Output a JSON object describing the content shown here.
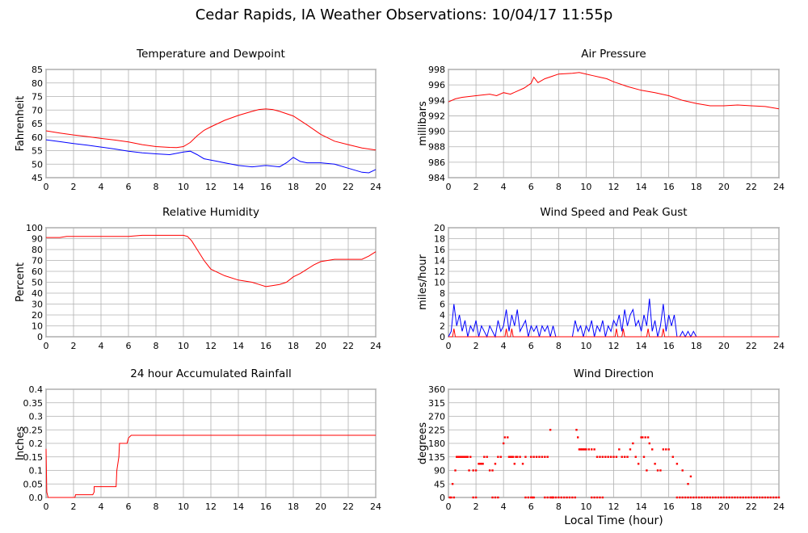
{
  "page": {
    "title": "Cedar Rapids, IA Weather Observations: 10/04/17 11:55p"
  },
  "x_axis_title": "Local Time (hour)",
  "chart_data": [
    {
      "id": "temp",
      "type": "line",
      "title": "Temperature and Dewpoint",
      "ylabel": "Fahrenheit",
      "xlim": [
        0,
        24
      ],
      "ylim": [
        45,
        85
      ],
      "yticks": [
        "45",
        "50",
        "55",
        "60",
        "65",
        "70",
        "75",
        "80",
        "85"
      ],
      "xticks": [
        "0",
        "2",
        "4",
        "6",
        "8",
        "10",
        "12",
        "14",
        "16",
        "18",
        "20",
        "22",
        "24"
      ],
      "grid": true,
      "series": [
        {
          "color": "#ff0000",
          "x": [
            0,
            1,
            2,
            3,
            4,
            5,
            6,
            7,
            8,
            9,
            9.5,
            10,
            10.5,
            11,
            11.5,
            12,
            13,
            14,
            15,
            15.5,
            16,
            16.5,
            17,
            18,
            19,
            20,
            21,
            22,
            23,
            24
          ],
          "values": [
            62.3,
            61.5,
            60.8,
            60.2,
            59.5,
            58.9,
            58.2,
            57.2,
            56.5,
            56.2,
            56.1,
            56.5,
            58.0,
            60.5,
            62.5,
            63.8,
            66.2,
            68.0,
            69.5,
            70.2,
            70.4,
            70.2,
            69.5,
            67.8,
            64.5,
            61.0,
            58.5,
            57.2,
            56.0,
            55.2
          ]
        },
        {
          "color": "#0000ff",
          "x": [
            0,
            1,
            2,
            3,
            4,
            5,
            6,
            7,
            8,
            9,
            10,
            10.5,
            11,
            11.5,
            12,
            12.5,
            13,
            14,
            15,
            16,
            17,
            17.5,
            18,
            18.5,
            19,
            20,
            21,
            22,
            23,
            23.5,
            24
          ],
          "values": [
            59.0,
            58.3,
            57.6,
            57.0,
            56.3,
            55.6,
            54.8,
            54.2,
            53.8,
            53.5,
            54.5,
            54.8,
            53.5,
            52.0,
            51.5,
            51.0,
            50.5,
            49.5,
            49.0,
            49.5,
            49.0,
            50.5,
            52.5,
            51.0,
            50.5,
            50.5,
            50.0,
            48.5,
            47.0,
            46.8,
            48.0
          ]
        }
      ]
    },
    {
      "id": "pres",
      "type": "line",
      "title": "Air Pressure",
      "ylabel": "millibars",
      "xlim": [
        0,
        24
      ],
      "ylim": [
        984,
        998
      ],
      "yticks": [
        "984",
        "986",
        "988",
        "990",
        "992",
        "994",
        "996",
        "998"
      ],
      "xticks": [
        "0",
        "2",
        "4",
        "6",
        "8",
        "10",
        "12",
        "14",
        "16",
        "18",
        "20",
        "22",
        "24"
      ],
      "grid": true,
      "series": [
        {
          "color": "#ff0000",
          "x": [
            0,
            0.5,
            1,
            2,
            3,
            3.5,
            4,
            4.5,
            5,
            5.5,
            6,
            6.2,
            6.5,
            7,
            7.5,
            8,
            9,
            9.5,
            10,
            10.5,
            11,
            11.5,
            12,
            13,
            14,
            15,
            16,
            16.5,
            17,
            18,
            19,
            20,
            21,
            22,
            23,
            24
          ],
          "values": [
            993.8,
            994.2,
            994.4,
            994.6,
            994.8,
            994.6,
            995.0,
            994.8,
            995.2,
            995.6,
            996.2,
            997.0,
            996.3,
            996.8,
            997.1,
            997.4,
            997.5,
            997.6,
            997.4,
            997.2,
            997.0,
            996.8,
            996.4,
            995.8,
            995.3,
            995.0,
            994.6,
            994.3,
            994.0,
            993.6,
            993.3,
            993.3,
            993.4,
            993.3,
            993.2,
            992.9
          ]
        }
      ]
    },
    {
      "id": "rh",
      "type": "line",
      "title": "Relative Humidity",
      "ylabel": "Percent",
      "xlim": [
        0,
        24
      ],
      "ylim": [
        0,
        100
      ],
      "yticks": [
        "0",
        "10",
        "20",
        "30",
        "40",
        "50",
        "60",
        "70",
        "80",
        "90",
        "100"
      ],
      "xticks": [
        "0",
        "2",
        "4",
        "6",
        "8",
        "10",
        "12",
        "14",
        "16",
        "18",
        "20",
        "22",
        "24"
      ],
      "grid": true,
      "series": [
        {
          "color": "#ff0000",
          "x": [
            0,
            1,
            1.5,
            2,
            3,
            4,
            5,
            6,
            7,
            8,
            9,
            10,
            10.3,
            10.6,
            11,
            11.5,
            12,
            13,
            14,
            15,
            15.5,
            16,
            16.5,
            17,
            17.5,
            18,
            18.5,
            19,
            19.5,
            20,
            21,
            22,
            23,
            23.5,
            24
          ],
          "values": [
            91,
            91,
            92,
            92,
            92,
            92,
            92,
            92,
            93,
            93,
            93,
            93,
            92,
            88,
            80,
            70,
            62,
            56,
            52,
            50,
            48,
            46,
            47,
            48,
            50,
            55,
            58,
            62,
            66,
            69,
            71,
            71,
            71,
            74,
            78
          ]
        }
      ]
    },
    {
      "id": "wind",
      "type": "line",
      "title": "Wind Speed and Peak Gust",
      "ylabel": "miles/hour",
      "xlim": [
        0,
        24
      ],
      "ylim": [
        0,
        20
      ],
      "yticks": [
        "0",
        "2",
        "4",
        "6",
        "8",
        "10",
        "12",
        "14",
        "16",
        "18",
        "20"
      ],
      "xticks": [
        "0",
        "2",
        "4",
        "6",
        "8",
        "10",
        "12",
        "14",
        "16",
        "18",
        "20",
        "22",
        "24"
      ],
      "grid": true,
      "series": [
        {
          "color": "#0000ff",
          "x": [
            0,
            0.2,
            0.4,
            0.6,
            0.8,
            1,
            1.2,
            1.4,
            1.6,
            1.8,
            2,
            2.2,
            2.4,
            2.6,
            2.8,
            3,
            3.2,
            3.4,
            3.6,
            3.8,
            4,
            4.2,
            4.4,
            4.6,
            4.8,
            5,
            5.2,
            5.4,
            5.6,
            5.8,
            6,
            6.2,
            6.4,
            6.6,
            6.8,
            7,
            7.2,
            7.4,
            7.6,
            7.8,
            8,
            9,
            9.2,
            9.4,
            9.6,
            9.8,
            10,
            10.2,
            10.4,
            10.6,
            10.8,
            11,
            11.2,
            11.4,
            11.6,
            11.8,
            12,
            12.2,
            12.4,
            12.6,
            12.8,
            13,
            13.2,
            13.4,
            13.6,
            13.8,
            14,
            14.2,
            14.4,
            14.6,
            14.8,
            15,
            15.2,
            15.4,
            15.6,
            15.8,
            16,
            16.2,
            16.4,
            16.6,
            16.8,
            17,
            17.2,
            17.4,
            17.6,
            17.8,
            18,
            24
          ],
          "values": [
            0,
            1,
            6,
            2,
            4,
            1,
            3,
            0,
            2,
            1,
            3,
            0,
            2,
            1,
            0,
            2,
            1,
            0,
            3,
            1,
            2,
            5,
            1,
            4,
            2,
            5,
            1,
            2,
            3,
            0,
            2,
            1,
            2,
            0,
            2,
            1,
            2,
            0,
            2,
            0,
            0,
            0,
            3,
            1,
            2,
            0,
            2,
            1,
            3,
            0,
            2,
            1,
            3,
            0,
            2,
            1,
            3,
            2,
            4,
            1,
            5,
            2,
            4,
            5,
            2,
            3,
            1,
            4,
            2,
            7,
            1,
            3,
            0,
            2,
            6,
            1,
            4,
            2,
            4,
            0,
            0,
            1,
            0,
            1,
            0,
            1,
            0,
            0
          ]
        },
        {
          "color": "#ff0000",
          "x": [
            0,
            0.3,
            0.4,
            0.5,
            4.1,
            4.2,
            4.3,
            4.5,
            4.6,
            4.7,
            12.1,
            12.2,
            12.3,
            12.6,
            12.7,
            12.8,
            14.4,
            14.5,
            14.6,
            15.5,
            15.6,
            15.7,
            24
          ],
          "values": [
            0,
            0,
            1.5,
            0,
            0,
            1.5,
            0,
            0,
            1.5,
            0,
            0,
            1.5,
            0,
            0,
            1.5,
            0,
            0,
            1.5,
            0,
            0,
            1.5,
            0,
            0
          ]
        }
      ]
    },
    {
      "id": "rain",
      "type": "line",
      "title": "24 hour Accumulated Rainfall",
      "ylabel": "Inches",
      "xlim": [
        0,
        24
      ],
      "ylim": [
        0,
        0.4
      ],
      "yticks": [
        "0.0",
        "0.05",
        "0.1",
        "0.15",
        "0.2",
        "0.25",
        "0.3",
        "0.35",
        "0.4"
      ],
      "xticks": [
        "0",
        "2",
        "4",
        "6",
        "8",
        "10",
        "12",
        "14",
        "16",
        "18",
        "20",
        "22",
        "24"
      ],
      "grid": true,
      "series": [
        {
          "color": "#ff0000",
          "x": [
            0,
            0.05,
            0.15,
            2.1,
            2.15,
            3.4,
            3.5,
            3.5,
            5.1,
            5.15,
            5.3,
            5.35,
            5.9,
            6.0,
            6.2,
            24
          ],
          "values": [
            0.18,
            0.02,
            0,
            0,
            0.01,
            0.01,
            0.02,
            0.04,
            0.04,
            0.1,
            0.15,
            0.2,
            0.2,
            0.22,
            0.23,
            0.23
          ]
        }
      ]
    },
    {
      "id": "wdir",
      "type": "scatter",
      "title": "Wind Direction",
      "ylabel": "degrees",
      "xlabel": "Local Time (hour)",
      "xlim": [
        0,
        24
      ],
      "ylim": [
        0,
        360
      ],
      "yticks": [
        "0",
        "45",
        "90",
        "135",
        "180",
        "225",
        "270",
        "315",
        "360"
      ],
      "xticks": [
        "0",
        "2",
        "4",
        "6",
        "8",
        "10",
        "12",
        "14",
        "16",
        "18",
        "20",
        "22",
        "24"
      ],
      "grid": true,
      "series": [
        {
          "color": "#ff0000",
          "x": [
            0.1,
            0.3,
            0.5,
            0.6,
            0.7,
            0.8,
            0.9,
            1.0,
            1.1,
            1.2,
            1.3,
            1.4,
            1.5,
            1.6,
            1.8,
            2.0,
            2.2,
            2.3,
            2.4,
            2.5,
            2.6,
            2.8,
            3.0,
            3.2,
            3.4,
            3.6,
            3.8,
            4.0,
            4.1,
            4.3,
            4.4,
            4.5,
            4.6,
            4.7,
            4.8,
            4.9,
            5.0,
            5.2,
            5.4,
            5.6,
            6.0,
            6.2,
            6.4,
            6.6,
            6.8,
            7.0,
            7.2,
            7.4,
            7.6,
            9.3,
            9.4,
            9.5,
            9.6,
            9.7,
            9.8,
            9.9,
            10.0,
            10.2,
            10.4,
            10.6,
            10.8,
            11.0,
            11.2,
            11.4,
            11.6,
            11.8,
            12.0,
            12.2,
            12.4,
            12.6,
            12.8,
            13.0,
            13.2,
            13.4,
            13.6,
            13.8,
            14.0,
            14.1,
            14.2,
            14.3,
            14.4,
            14.5,
            14.6,
            14.8,
            15.0,
            15.2,
            15.4,
            15.6,
            15.8,
            16.0,
            16.3,
            16.6,
            17.0,
            17.4,
            17.6
          ],
          "values": [
            0,
            45,
            90,
            135,
            135,
            135,
            135,
            135,
            135,
            135,
            135,
            135,
            90,
            135,
            90,
            90,
            112,
            112,
            112,
            112,
            135,
            135,
            90,
            90,
            112,
            135,
            135,
            180,
            200,
            200,
            135,
            135,
            135,
            135,
            112,
            135,
            135,
            135,
            112,
            135,
            135,
            135,
            135,
            135,
            135,
            135,
            135,
            225,
            0,
            225,
            200,
            160,
            160,
            160,
            160,
            160,
            160,
            160,
            160,
            160,
            135,
            135,
            135,
            135,
            135,
            135,
            135,
            135,
            160,
            135,
            135,
            135,
            160,
            180,
            135,
            112,
            200,
            200,
            135,
            200,
            90,
            200,
            180,
            160,
            112,
            90,
            90,
            160,
            160,
            160,
            135,
            112,
            90,
            45,
            70
          ]
        },
        {
          "color": "#ff0000",
          "x": [
            0.2,
            0.4,
            1.8,
            2.0,
            3.2,
            3.4,
            3.6,
            5.6,
            5.8,
            6.0,
            6.1,
            6.2,
            7.0,
            7.2,
            7.4,
            7.5,
            7.6,
            7.8,
            8.0,
            8.2,
            8.4,
            8.6,
            8.8,
            9.0,
            9.2,
            10.4,
            10.6,
            10.8,
            11.0,
            11.2,
            16.6,
            16.8,
            17.0,
            17.2,
            17.4,
            17.6,
            17.8,
            18.0,
            18.2,
            18.4,
            18.6,
            18.8,
            19.0,
            19.2,
            19.4,
            19.6,
            19.8,
            20.0,
            20.2,
            20.4,
            20.6,
            20.8,
            21.0,
            21.2,
            21.4,
            21.6,
            21.8,
            22.0,
            22.2,
            22.4,
            22.6,
            22.8,
            23.0,
            23.2,
            23.4,
            23.6,
            23.8,
            24.0
          ],
          "values": [
            0,
            0,
            0,
            0,
            0,
            0,
            0,
            0,
            0,
            0,
            0,
            0,
            0,
            0,
            0,
            0,
            0,
            0,
            0,
            0,
            0,
            0,
            0,
            0,
            0,
            0,
            0,
            0,
            0,
            0,
            0,
            0,
            0,
            0,
            0,
            0,
            0,
            0,
            0,
            0,
            0,
            0,
            0,
            0,
            0,
            0,
            0,
            0,
            0,
            0,
            0,
            0,
            0,
            0,
            0,
            0,
            0,
            0,
            0,
            0,
            0,
            0,
            0,
            0,
            0,
            0,
            0,
            0
          ]
        }
      ]
    }
  ]
}
